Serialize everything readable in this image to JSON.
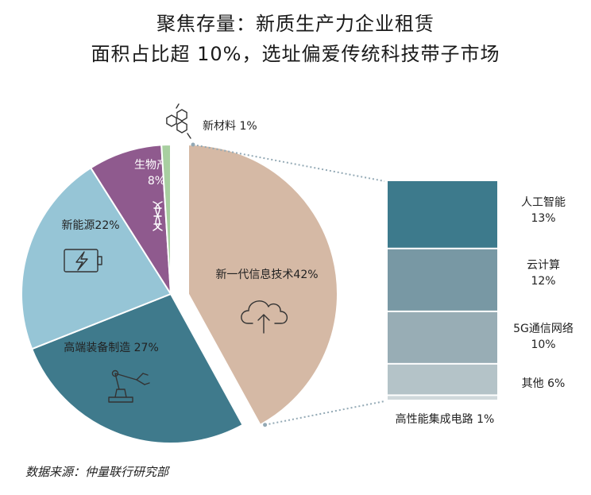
{
  "title": [
    "聚焦存量：新质生产力企业租赁",
    "面积占比超 10%，选址偏爱传统科技带子市场"
  ],
  "source": "数据来源：仲量联行研究部",
  "colors": {
    "new_material": "#a8cfa0",
    "biotech": "#8f5a8e",
    "new_energy": "#96c5d6",
    "advanced_manufacturing": "#3f7a8c",
    "it": "#d5b9a5",
    "ai": "#3d7a8c",
    "cloud": "#7898a4",
    "5g": "#98adb5",
    "other": "#b4c3c8",
    "ic": "#cfd8db",
    "connector": "#93a9b5"
  },
  "chart_data": [
    {
      "type": "pie",
      "slices": [
        {
          "key": "it",
          "label": "新一代信息技术42%",
          "value": 42,
          "icon": "cloud-upload-icon"
        },
        {
          "key": "advanced_manufacturing",
          "label": "高端装备制造 27%",
          "value": 27,
          "icon": "robot-arm-icon"
        },
        {
          "key": "new_energy",
          "label": "新能源22%",
          "value": 22,
          "icon": "battery-charging-icon"
        },
        {
          "key": "biotech",
          "label": [
            "生物产业",
            "8%"
          ],
          "value": 8,
          "icon": "dna-icon"
        },
        {
          "key": "new_material",
          "label": "新材料 1%",
          "value": 1,
          "icon": "molecule-icon"
        }
      ]
    },
    {
      "type": "bar",
      "stacked": true,
      "segments": [
        {
          "key": "ai",
          "label": [
            "人工智能",
            "13%"
          ],
          "value": 13
        },
        {
          "key": "cloud",
          "label": [
            "云计算",
            "12%"
          ],
          "value": 12
        },
        {
          "key": "5g",
          "label": [
            "5G通信网络",
            "10%"
          ],
          "value": 10
        },
        {
          "key": "other",
          "label": [
            "其他 6%"
          ],
          "value": 6
        },
        {
          "key": "ic",
          "label": [
            "高性能集成电路 1%"
          ],
          "value": 1
        }
      ]
    }
  ]
}
